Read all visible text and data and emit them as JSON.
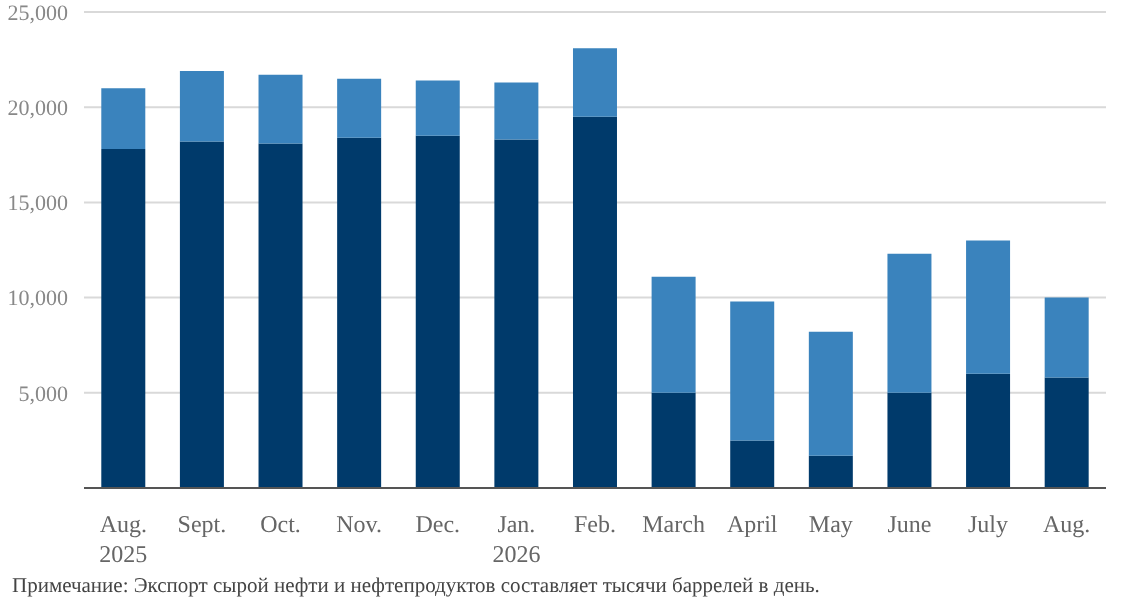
{
  "chart_data": {
    "type": "bar",
    "stacked": true,
    "categories": [
      "Aug.\n2025",
      "Sept.",
      "Oct.",
      "Nov.",
      "Dec.",
      "Jan.\n2026",
      "Feb.",
      "March",
      "April",
      "May",
      "June",
      "July",
      "Aug."
    ],
    "series": [
      {
        "color": "#003a6b",
        "values": [
          17800,
          18200,
          18100,
          18400,
          18500,
          18300,
          19500,
          5000,
          2500,
          1700,
          5000,
          6000,
          5800
        ]
      },
      {
        "color": "#3a83bd",
        "values": [
          3200,
          3700,
          3600,
          3100,
          2900,
          3000,
          3600,
          6100,
          7300,
          6500,
          7300,
          7000,
          4200
        ]
      }
    ],
    "ylim": [
      0,
      25000
    ],
    "yticks": [
      {
        "value": 0,
        "label": null
      },
      {
        "value": 5000,
        "label": "5,000"
      },
      {
        "value": 10000,
        "label": "10,000"
      },
      {
        "value": 15000,
        "label": "15,000"
      },
      {
        "value": 20000,
        "label": "20,000"
      },
      {
        "value": 25000,
        "label": "25,000"
      }
    ],
    "grid": "y",
    "annotations": [
      "Примечание: Экспорт сырой нефти и нефтепродуктов составляет тысячи баррелей в день."
    ]
  }
}
